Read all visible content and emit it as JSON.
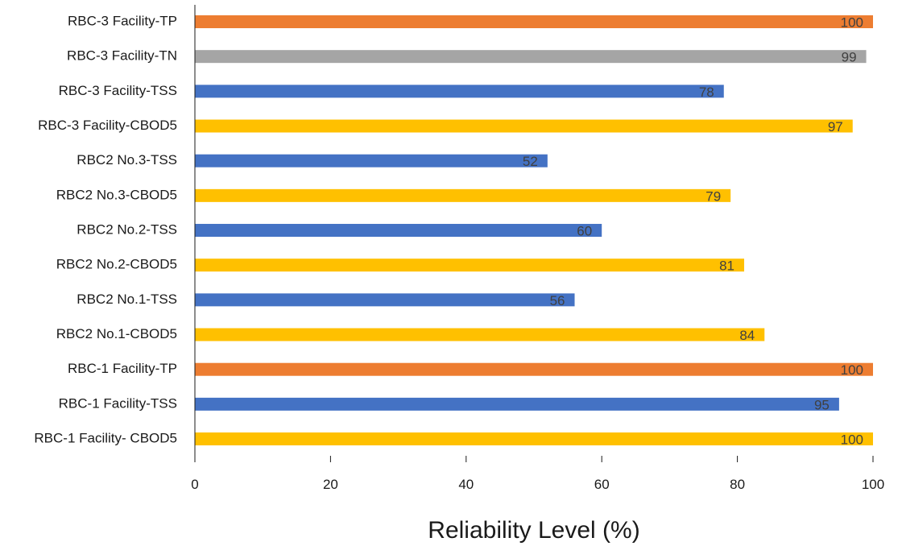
{
  "chart_data": {
    "type": "bar",
    "orientation": "horizontal",
    "categories": [
      "RBC-3 Facility-TP",
      "RBC-3 Facility-TN",
      "RBC-3 Facility-TSS",
      "RBC-3 Facility-CBOD5",
      "RBC2 No.3-TSS",
      "RBC2 No.3-CBOD5",
      "RBC2 No.2-TSS",
      "RBC2 No.2-CBOD5",
      "RBC2 No.1-TSS",
      "RBC2 No.1-CBOD5",
      "RBC-1 Facility-TP",
      "RBC-1 Facility-TSS",
      "RBC-1 Facility- CBOD5"
    ],
    "values": [
      100,
      99,
      78,
      97,
      52,
      79,
      60,
      81,
      56,
      84,
      100,
      95,
      100
    ],
    "colors": [
      "#ED7D31",
      "#A5A5A5",
      "#4472C4",
      "#FFC000",
      "#4472C4",
      "#FFC000",
      "#4472C4",
      "#FFC000",
      "#4472C4",
      "#FFC000",
      "#ED7D31",
      "#4472C4",
      "#FFC000"
    ],
    "data_labels": [
      "100",
      "99",
      "78",
      "97",
      "52",
      "79",
      "60",
      "81",
      "56",
      "84",
      "100",
      "95",
      "100"
    ],
    "xlim": [
      0,
      100
    ],
    "xticks": [
      0,
      20,
      40,
      60,
      80,
      100
    ],
    "xtick_labels": [
      "0",
      "20",
      "40",
      "60",
      "80",
      "100"
    ],
    "xlabel": "Reliability Level (%)",
    "ylabel": "",
    "title": "",
    "grid": false,
    "legend": "none"
  }
}
